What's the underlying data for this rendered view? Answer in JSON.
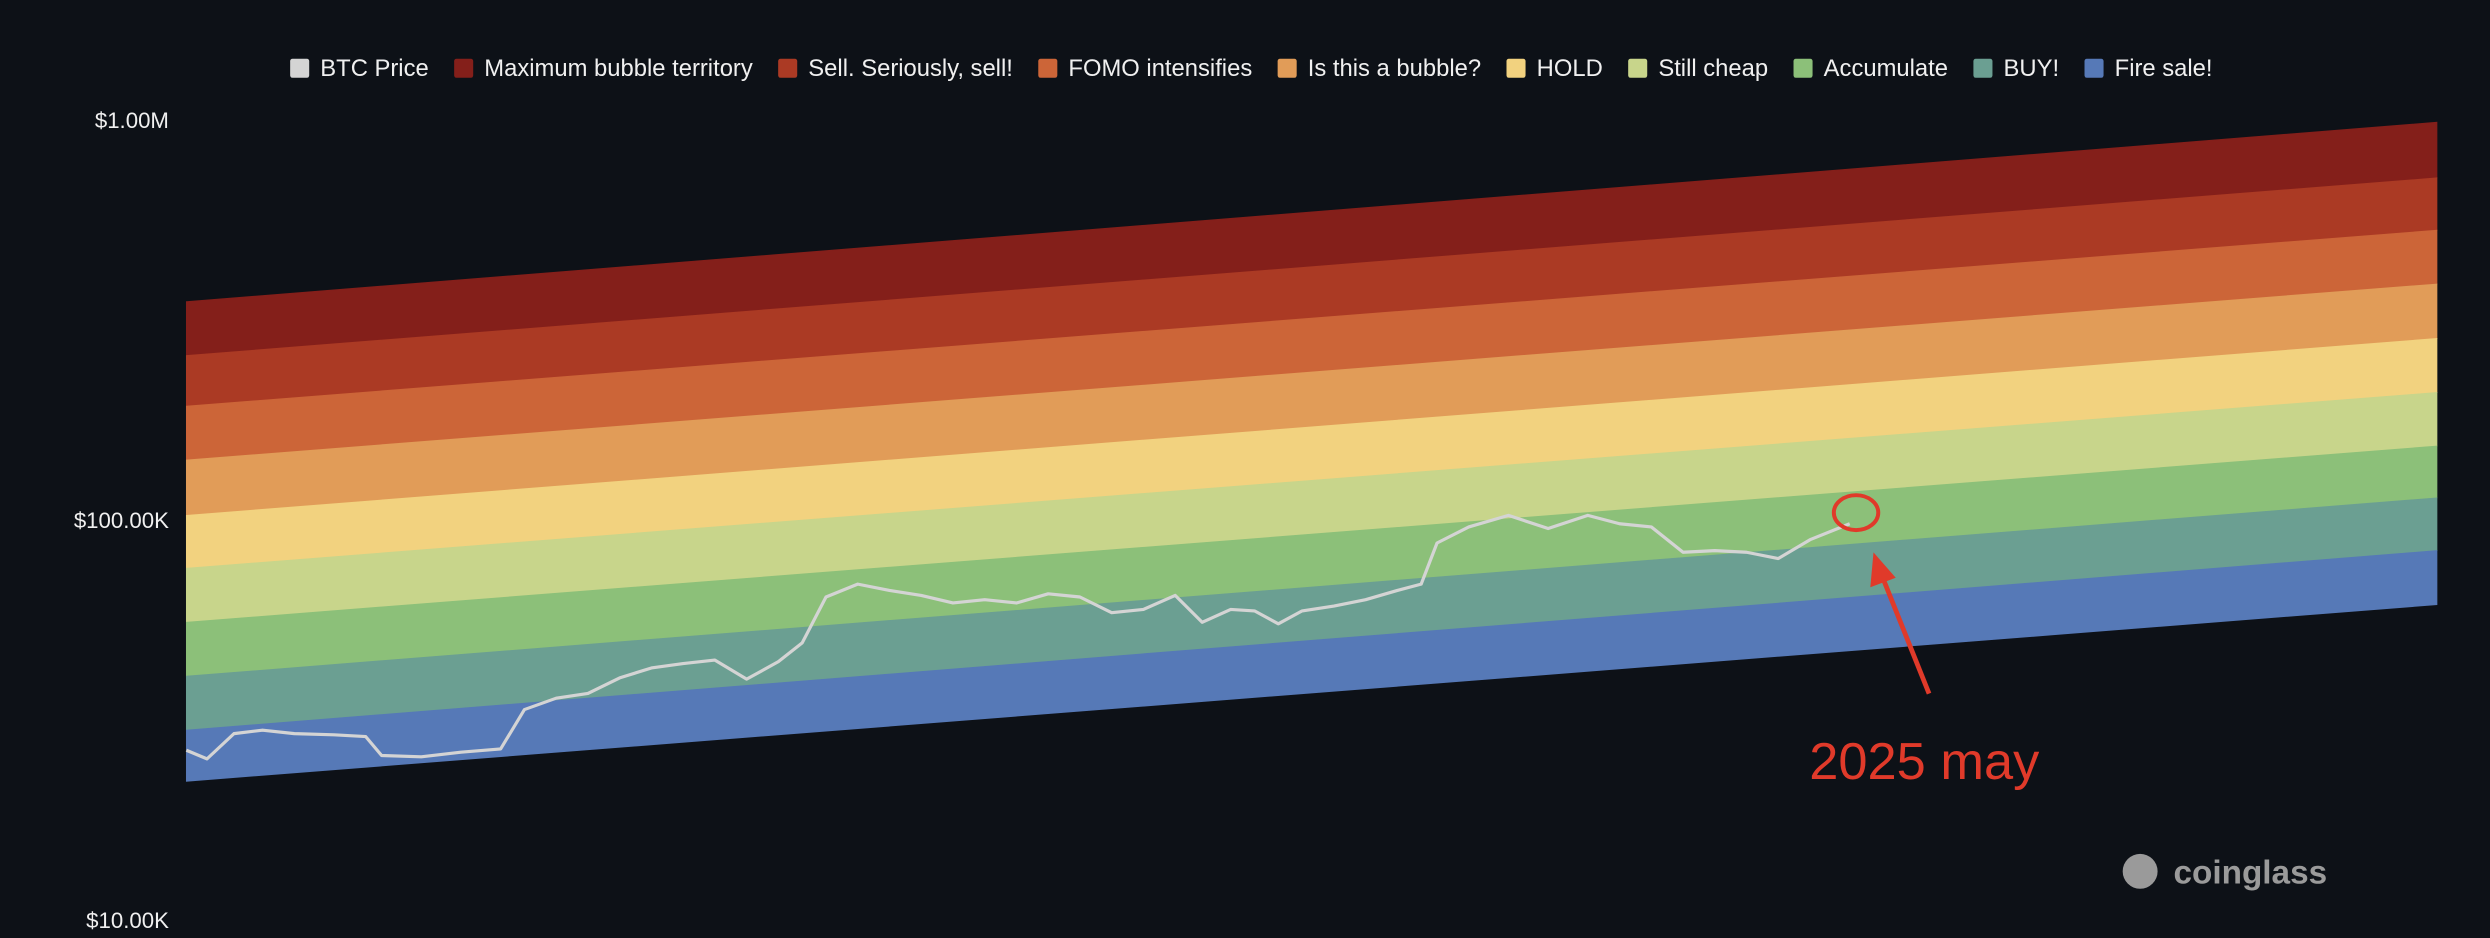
{
  "chart_data": {
    "type": "line",
    "log_scale": true,
    "grid": false,
    "legend": "top",
    "ylim": [
      10000,
      1000000
    ],
    "yticks": [
      {
        "value": 10000,
        "label": "$10.00K"
      },
      {
        "value": 100000,
        "label": "$100.00K"
      },
      {
        "value": 1000000,
        "label": "$1.00M"
      }
    ],
    "xlim": [
      0,
      1418
    ],
    "annotation": "2025 may",
    "watermark": "coinglass",
    "series": [
      {
        "name": "BTC Price",
        "color": "#d4d4d4",
        "x": [
          0,
          13,
          30,
          48,
          68,
          93,
          113,
          123,
          148,
          173,
          198,
          213,
          233,
          253,
          273,
          293,
          313,
          333,
          353,
          373,
          388,
          403,
          423,
          443,
          463,
          483,
          503,
          523,
          543,
          563,
          583,
          603,
          623,
          640,
          658,
          673,
          688,
          703,
          723,
          743,
          763,
          778,
          788,
          808,
          833,
          858,
          883,
          903,
          923,
          943,
          963,
          983,
          1003,
          1023,
          1048
        ],
        "values": [
          26900,
          25600,
          29600,
          30200,
          29600,
          29400,
          29100,
          26100,
          25900,
          26600,
          27100,
          34000,
          36300,
          37300,
          40800,
          43200,
          44300,
          45200,
          40500,
          44800,
          49900,
          65000,
          70000,
          67500,
          65600,
          62800,
          64000,
          62800,
          66200,
          65000,
          59400,
          60500,
          65600,
          56200,
          60500,
          60000,
          55700,
          60000,
          61700,
          64000,
          67500,
          70000,
          88700,
          97300,
          104000,
          96400,
          104000,
          99100,
          97300,
          84100,
          84900,
          84100,
          81100,
          90400,
          99100
        ]
      },
      {
        "name": "Maximum bubble territory",
        "color": "#841f1a",
        "x": [
          0,
          1418
        ],
        "high": [
          356000,
          1000000
        ],
        "low": [
          261000,
          726000
        ]
      },
      {
        "name": "Sell. Seriously, sell!",
        "color": "#ab3a24",
        "x": [
          0,
          1418
        ],
        "high": [
          261000,
          726000
        ],
        "low": [
          195000,
          537000
        ]
      },
      {
        "name": "FOMO intensifies",
        "color": "#cc6538",
        "x": [
          0,
          1418
        ],
        "high": [
          195000,
          537000
        ],
        "low": [
          143000,
          394000
        ]
      },
      {
        "name": "Is this a bubble?",
        "color": "#e19c58",
        "x": [
          0,
          1418
        ],
        "high": [
          143000,
          394000
        ],
        "low": [
          104000,
          288000
        ]
      },
      {
        "name": "HOLD",
        "color": "#f2d27f",
        "x": [
          0,
          1418
        ],
        "high": [
          104000,
          288000
        ],
        "low": [
          76700,
          211000
        ]
      },
      {
        "name": "Still cheap",
        "color": "#c8d58b",
        "x": [
          0,
          1418
        ],
        "high": [
          76700,
          211000
        ],
        "low": [
          56200,
          155000
        ]
      },
      {
        "name": "Accumulate",
        "color": "#8cc079",
        "x": [
          0,
          1418
        ],
        "high": [
          56200,
          155000
        ],
        "low": [
          41200,
          115000
        ]
      },
      {
        "name": "BUY!",
        "color": "#6b9f92",
        "x": [
          0,
          1418
        ],
        "high": [
          41200,
          115000
        ],
        "low": [
          30200,
          84900
        ]
      },
      {
        "name": "Fire sale!",
        "color": "#5679b7",
        "x": [
          0,
          1418
        ],
        "high": [
          30200,
          84900
        ],
        "low": [
          22500,
          62200
        ]
      }
    ]
  }
}
